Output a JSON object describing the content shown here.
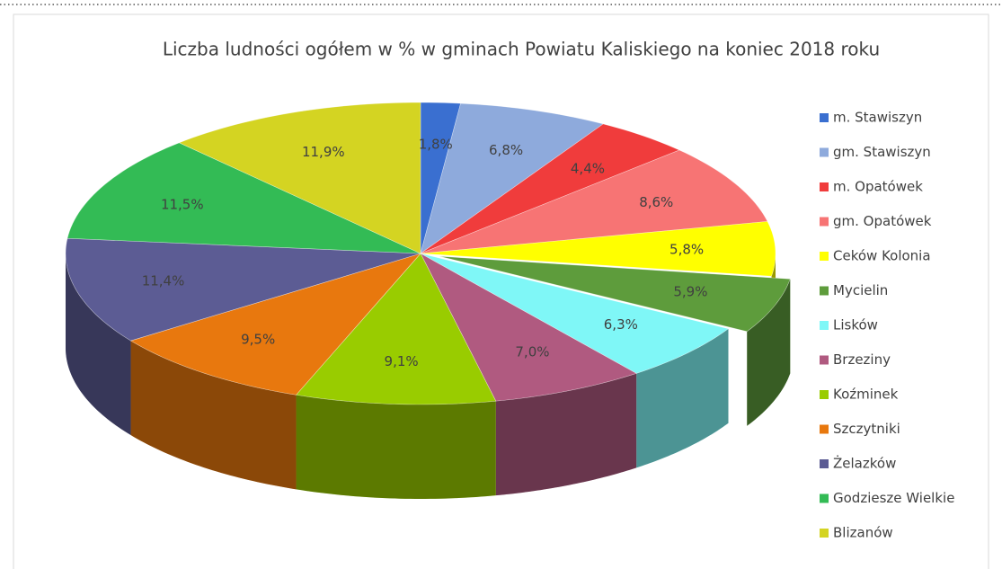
{
  "chart_data": {
    "type": "pie3d",
    "title": "Liczba ludności ogółem w % w gminach Powiatu Kaliskiego na koniec 2018 roku",
    "categories": [
      "m. Stawiszyn",
      "gm. Stawiszyn",
      "m. Opatówek",
      "gm. Opatówek",
      "Ceków Kolonia",
      "Mycielin",
      "Lisków",
      "Brzeziny",
      "Koźminek",
      "Szczytniki",
      "Żelazków",
      "Godziesze Wielkie",
      "Blizanów"
    ],
    "values": [
      1.8,
      6.8,
      4.4,
      8.6,
      5.8,
      5.9,
      6.3,
      7.0,
      9.1,
      9.5,
      11.4,
      11.5,
      11.9
    ],
    "value_labels": [
      "1,8%",
      "6,8%",
      "4,4%",
      "8,6%",
      "5,8%",
      "5,9%",
      "6,3%",
      "7,0%",
      "9,1%",
      "9,5%",
      "11,4%",
      "11,5%",
      "11,9%"
    ],
    "colors": [
      "#3a6fd0",
      "#8eaadc",
      "#f03c3c",
      "#f77474",
      "#ffff00",
      "#5e9c3c",
      "#7ff7f7",
      "#b05a80",
      "#99cc00",
      "#e8780e",
      "#5c5c94",
      "#33bb55",
      "#d4d422"
    ],
    "exploded": [
      5
    ],
    "legend": "right"
  }
}
